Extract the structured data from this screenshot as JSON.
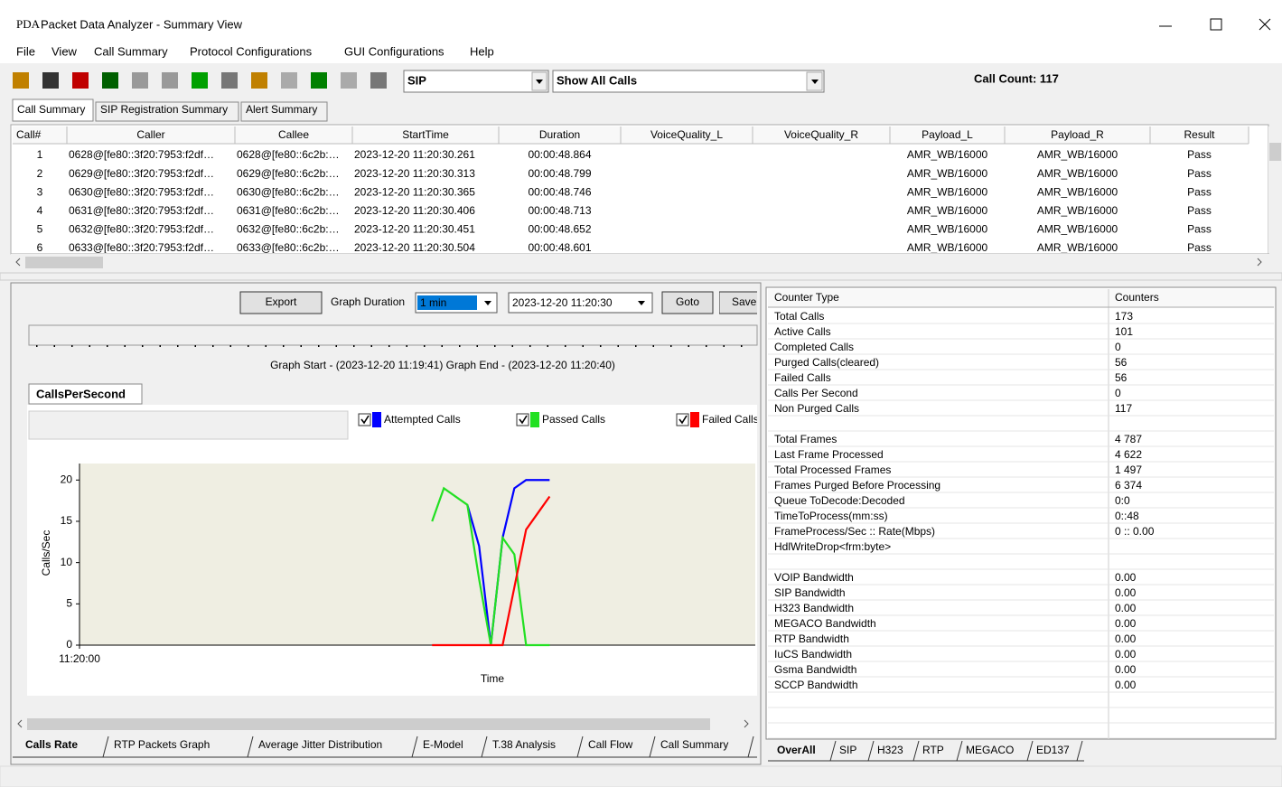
{
  "window": {
    "icon": "PDA",
    "title": "Packet Data Analyzer - Summary View"
  },
  "menu": [
    "File",
    "View",
    "Call Summary",
    "Protocol Configurations",
    "GUI Configurations",
    "Help"
  ],
  "toolbar": {
    "protocol": "SIP",
    "filter": "Show All Calls",
    "call_count": "Call Count: 117"
  },
  "tabs": [
    "Call Summary",
    "SIP Registration Summary",
    "Alert Summary"
  ],
  "calls": {
    "columns": [
      "Call#",
      "Caller",
      "Callee",
      "StartTime",
      "Duration",
      "VoiceQuality_L",
      "VoiceQuality_R",
      "Payload_L",
      "Payload_R",
      "Result"
    ],
    "rows": [
      [
        1,
        "0628@[fe80::3f20:7953:f2df…",
        "0628@[fe80::6c2b:…",
        "2023-12-20 11:20:30.261",
        "00:00:48.864",
        "AMR_WB/16000",
        "AMR_WB/16000",
        "Pass"
      ],
      [
        2,
        "0629@[fe80::3f20:7953:f2df…",
        "0629@[fe80::6c2b:…",
        "2023-12-20 11:20:30.313",
        "00:00:48.799",
        "AMR_WB/16000",
        "AMR_WB/16000",
        "Pass"
      ],
      [
        3,
        "0630@[fe80::3f20:7953:f2df…",
        "0630@[fe80::6c2b:…",
        "2023-12-20 11:20:30.365",
        "00:00:48.746",
        "AMR_WB/16000",
        "AMR_WB/16000",
        "Pass"
      ],
      [
        4,
        "0631@[fe80::3f20:7953:f2df…",
        "0631@[fe80::6c2b:…",
        "2023-12-20 11:20:30.406",
        "00:00:48.713",
        "AMR_WB/16000",
        "AMR_WB/16000",
        "Pass"
      ],
      [
        5,
        "0632@[fe80::3f20:7953:f2df…",
        "0632@[fe80::6c2b:…",
        "2023-12-20 11:20:30.451",
        "00:00:48.652",
        "AMR_WB/16000",
        "AMR_WB/16000",
        "Pass"
      ],
      [
        6,
        "0633@[fe80::3f20:7953:f2df…",
        "0633@[fe80::6c2b:…",
        "2023-12-20 11:20:30.504",
        "00:00:48.601",
        "AMR_WB/16000",
        "AMR_WB/16000",
        "Pass"
      ]
    ]
  },
  "graph_controls": {
    "export": "Export",
    "duration_label": "Graph Duration",
    "duration": "1 min",
    "start": "2023-12-20 11:20:30",
    "goto": "Goto",
    "save": "Save",
    "range": "Graph Start - (2023-12-20 11:19:41) Graph End - (2023-12-20 11:20:40)"
  },
  "graph_tab": "CallsPerSecond",
  "chart_data": {
    "type": "line",
    "x_label": "Time",
    "y_label": "Calls/Sec",
    "x": [
      30,
      31,
      32,
      33,
      34,
      35,
      36,
      37,
      38,
      39,
      40
    ],
    "xlim": [
      0,
      57.5
    ],
    "xticks": [
      {
        "value": 0,
        "label": "11:20:00"
      }
    ],
    "ylim": [
      0,
      22
    ],
    "yticks": [
      0,
      5,
      10,
      15,
      20
    ],
    "series": [
      {
        "name": "Attempted Calls",
        "color": "#0000ff",
        "values": [
          null,
          null,
          null,
          17,
          12,
          0,
          13,
          19,
          20,
          20,
          20
        ]
      },
      {
        "name": "Passed Calls",
        "color": "#22e022",
        "values": [
          15,
          19,
          18,
          17,
          8,
          0,
          13,
          11,
          0,
          0,
          0
        ]
      },
      {
        "name": "Failed Calls",
        "color": "#ff0000",
        "values": [
          0,
          0,
          0,
          0,
          0,
          0,
          0,
          7,
          14,
          16,
          18
        ]
      }
    ]
  },
  "graph_tabs": [
    "Calls Rate",
    "RTP Packets Graph",
    "Average Jitter Distribution",
    "E-Model",
    "T.38 Analysis",
    "Call Flow",
    "Call Summary"
  ],
  "counters": {
    "columns": [
      "Counter Type",
      "Counters"
    ],
    "groups": [
      [
        [
          "Total Calls",
          173
        ],
        [
          "Active Calls",
          101
        ],
        [
          "Completed Calls",
          0
        ],
        [
          "Purged Calls(cleared)",
          56
        ],
        [
          "Failed Calls",
          56
        ],
        [
          "Calls Per Second",
          0
        ],
        [
          "Non Purged Calls",
          117
        ]
      ],
      [
        [
          "Total Frames",
          "4 787"
        ],
        [
          "Last Frame Processed",
          "4 622"
        ],
        [
          "Total Processed Frames",
          "1 497"
        ],
        [
          "Frames Purged Before Processing",
          "6 374"
        ],
        [
          "Queue ToDecode:Decoded",
          "0:0"
        ],
        [
          "TimeToProcess(mm:ss)",
          "0::48"
        ],
        [
          "FrameProcess/Sec :: Rate(Mbps)",
          "0 :: 0.00"
        ],
        [
          "HdlWriteDrop<frm:byte>"
        ]
      ],
      [
        [
          "VOIP Bandwidth",
          "0.00"
        ],
        [
          "SIP Bandwidth",
          "0.00"
        ],
        [
          "H323 Bandwidth",
          "0.00"
        ],
        [
          "MEGACO Bandwidth",
          "0.00"
        ],
        [
          "RTP Bandwidth",
          "0.00"
        ],
        [
          "IuCS Bandwidth",
          "0.00"
        ],
        [
          "Gsma Bandwidth",
          "0.00"
        ],
        [
          "SCCP Bandwidth",
          "0.00"
        ]
      ]
    ]
  },
  "stat_tabs": [
    "OverAll",
    "SIP",
    "H323",
    "RTP",
    "MEGACO",
    "ED137"
  ]
}
